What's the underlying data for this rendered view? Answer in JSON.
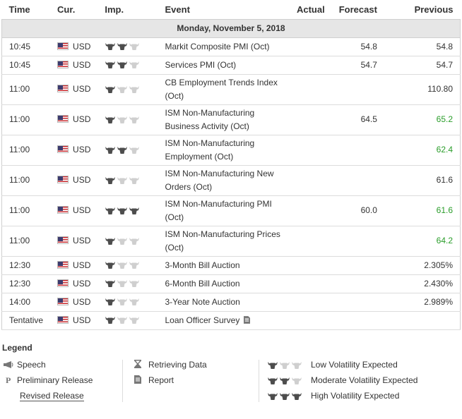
{
  "header": {
    "time": "Time",
    "cur": "Cur.",
    "imp": "Imp.",
    "event": "Event",
    "actual": "Actual",
    "forecast": "Forecast",
    "previous": "Previous"
  },
  "date_label": "Monday, November 5, 2018",
  "events": [
    {
      "time": "10:45",
      "currency": "USD",
      "importance": 2,
      "event": "Markit Composite PMI (Oct)",
      "actual": "",
      "forecast": "54.8",
      "previous": "54.8",
      "previous_color": "normal"
    },
    {
      "time": "10:45",
      "currency": "USD",
      "importance": 2,
      "event": "Services PMI (Oct)",
      "actual": "",
      "forecast": "54.7",
      "previous": "54.7",
      "previous_color": "normal"
    },
    {
      "time": "11:00",
      "currency": "USD",
      "importance": 1,
      "event": "CB Employment Trends Index (Oct)",
      "actual": "",
      "forecast": "",
      "previous": "110.80",
      "previous_color": "normal"
    },
    {
      "time": "11:00",
      "currency": "USD",
      "importance": 1,
      "event": "ISM Non-Manufacturing Business Activity (Oct)",
      "actual": "",
      "forecast": "64.5",
      "previous": "65.2",
      "previous_color": "green"
    },
    {
      "time": "11:00",
      "currency": "USD",
      "importance": 2,
      "event": "ISM Non-Manufacturing Employment (Oct)",
      "actual": "",
      "forecast": "",
      "previous": "62.4",
      "previous_color": "green"
    },
    {
      "time": "11:00",
      "currency": "USD",
      "importance": 1,
      "event": "ISM Non-Manufacturing New Orders (Oct)",
      "actual": "",
      "forecast": "",
      "previous": "61.6",
      "previous_color": "normal"
    },
    {
      "time": "11:00",
      "currency": "USD",
      "importance": 3,
      "event": "ISM Non-Manufacturing PMI (Oct)",
      "actual": "",
      "forecast": "60.0",
      "previous": "61.6",
      "previous_color": "green"
    },
    {
      "time": "11:00",
      "currency": "USD",
      "importance": 1,
      "event": "ISM Non-Manufacturing Prices (Oct)",
      "actual": "",
      "forecast": "",
      "previous": "64.2",
      "previous_color": "green"
    },
    {
      "time": "12:30",
      "currency": "USD",
      "importance": 1,
      "event": "3-Month Bill Auction",
      "actual": "",
      "forecast": "",
      "previous": "2.305%",
      "previous_color": "normal"
    },
    {
      "time": "12:30",
      "currency": "USD",
      "importance": 1,
      "event": "6-Month Bill Auction",
      "actual": "",
      "forecast": "",
      "previous": "2.430%",
      "previous_color": "normal"
    },
    {
      "time": "14:00",
      "currency": "USD",
      "importance": 1,
      "event": "3-Year Note Auction",
      "actual": "",
      "forecast": "",
      "previous": "2.989%",
      "previous_color": "normal"
    },
    {
      "time": "Tentative",
      "currency": "USD",
      "importance": 1,
      "event": "Loan Officer Survey",
      "actual": "",
      "forecast": "",
      "previous": "",
      "previous_color": "normal",
      "report_icon": true
    }
  ],
  "legend": {
    "title": "Legend",
    "speech": "Speech",
    "preliminary": "Preliminary Release",
    "revised": "Revised Release",
    "retrieving": "Retrieving Data",
    "report": "Report",
    "low": "Low Volatility Expected",
    "moderate": "Moderate Volatility Expected",
    "high": "High Volatility Expected",
    "preliminary_symbol": "P"
  },
  "colors": {
    "accent_green": "#2a9d2a",
    "date_bg": "#e6e6e6",
    "bull_on": "#4d4d4d",
    "bull_off": "#cfcfcf"
  }
}
